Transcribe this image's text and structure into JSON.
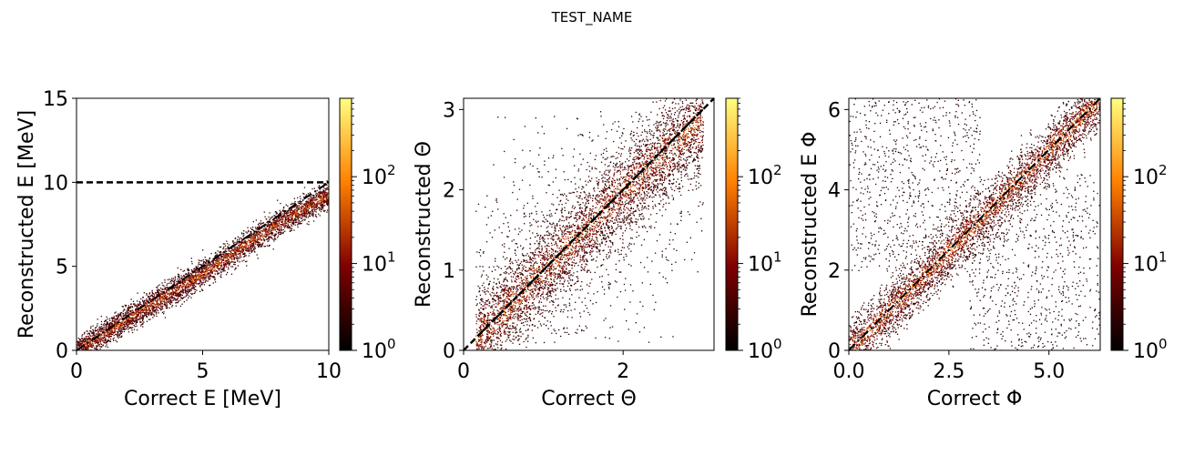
{
  "figure": {
    "suptitle": "TEST_NAME"
  },
  "colormap": {
    "name": "afmhot",
    "stops": [
      "#000000",
      "#3d0000",
      "#800000",
      "#c04000",
      "#ff8000",
      "#ffc040",
      "#ffff80"
    ]
  },
  "chart_data": [
    {
      "type": "heatmap",
      "xlabel": "Correct E [MeV]",
      "ylabel": "Reconstructed E [MeV]",
      "xlim": [
        0,
        10
      ],
      "ylim": [
        0,
        15
      ],
      "xticks": [
        0,
        5,
        10
      ],
      "xticklabels": [
        "0",
        "5",
        "10"
      ],
      "yticks": [
        0,
        5,
        10,
        15
      ],
      "yticklabels": [
        "0",
        "5",
        "10",
        "15"
      ],
      "reference_lines": [
        {
          "style": "dashed",
          "points": [
            [
              0,
              10
            ],
            [
              10,
              10
            ]
          ]
        },
        {
          "style": "dashdot",
          "points": [
            [
              0,
              0
            ],
            [
              10,
              10
            ]
          ]
        }
      ],
      "density": {
        "trend": [
          [
            0,
            0
          ],
          [
            2,
            1.9
          ],
          [
            5,
            4.6
          ],
          [
            8,
            7.6
          ],
          [
            10,
            9.3
          ]
        ],
        "x_range": [
          0,
          10
        ],
        "spread": 0.5,
        "background_scatter": "none"
      },
      "colorbar": {
        "scale": "log",
        "range": [
          1,
          800
        ],
        "ticks": [
          {
            "base": "10",
            "exp": "0",
            "value": 1
          },
          {
            "base": "10",
            "exp": "1",
            "value": 10
          },
          {
            "base": "10",
            "exp": "2",
            "value": 100
          }
        ]
      }
    },
    {
      "type": "heatmap",
      "xlabel": "Correct Θ",
      "ylabel": "Reconstructed Θ",
      "xlim": [
        0,
        3.14
      ],
      "ylim": [
        0,
        3.14
      ],
      "xticks": [
        0,
        2
      ],
      "xticklabels": [
        "0",
        "2"
      ],
      "yticks": [
        0,
        1,
        2,
        3
      ],
      "yticklabels": [
        "0",
        "1",
        "2",
        "3"
      ],
      "reference_lines": [
        {
          "style": "dashed",
          "points": [
            [
              0,
              0
            ],
            [
              3.14,
              3.14
            ]
          ]
        },
        {
          "style": "dashdot",
          "points": [
            [
              0.2,
              0.2
            ],
            [
              3.0,
              3.0
            ]
          ]
        }
      ],
      "density": {
        "trend": [
          [
            0.15,
            0.15
          ],
          [
            1.0,
            1.0
          ],
          [
            2.0,
            2.0
          ],
          [
            2.9,
            2.8
          ]
        ],
        "x_range": [
          0.15,
          3.0
        ],
        "spread": 0.35,
        "background_scatter": "broad"
      },
      "colorbar": {
        "scale": "log",
        "range": [
          1,
          800
        ],
        "ticks": [
          {
            "base": "10",
            "exp": "0",
            "value": 1
          },
          {
            "base": "10",
            "exp": "1",
            "value": 10
          },
          {
            "base": "10",
            "exp": "2",
            "value": 100
          }
        ]
      }
    },
    {
      "type": "heatmap",
      "xlabel": "Correct Φ",
      "ylabel": "Reconstructed E Φ",
      "xlim": [
        0,
        6.28
      ],
      "ylim": [
        0,
        6.28
      ],
      "xticks": [
        0,
        2.5,
        5
      ],
      "xticklabels": [
        "0.0",
        "2.5",
        "5.0"
      ],
      "yticks": [
        0,
        2,
        4,
        6
      ],
      "yticklabels": [
        "0",
        "2",
        "4",
        "6"
      ],
      "reference_lines": [
        {
          "style": "dashdot",
          "points": [
            [
              0,
              0
            ],
            [
              6.28,
              6.28
            ]
          ]
        }
      ],
      "density": {
        "trend": [
          [
            0,
            0
          ],
          [
            3.14,
            3.14
          ],
          [
            6.28,
            6.28
          ]
        ],
        "x_range": [
          0,
          6.28
        ],
        "spread": 0.45,
        "background_scatter": "quadrant"
      },
      "colorbar": {
        "scale": "log",
        "range": [
          1,
          800
        ],
        "ticks": [
          {
            "base": "10",
            "exp": "0",
            "value": 1
          },
          {
            "base": "10",
            "exp": "1",
            "value": 10
          },
          {
            "base": "10",
            "exp": "2",
            "value": 100
          }
        ]
      }
    }
  ]
}
